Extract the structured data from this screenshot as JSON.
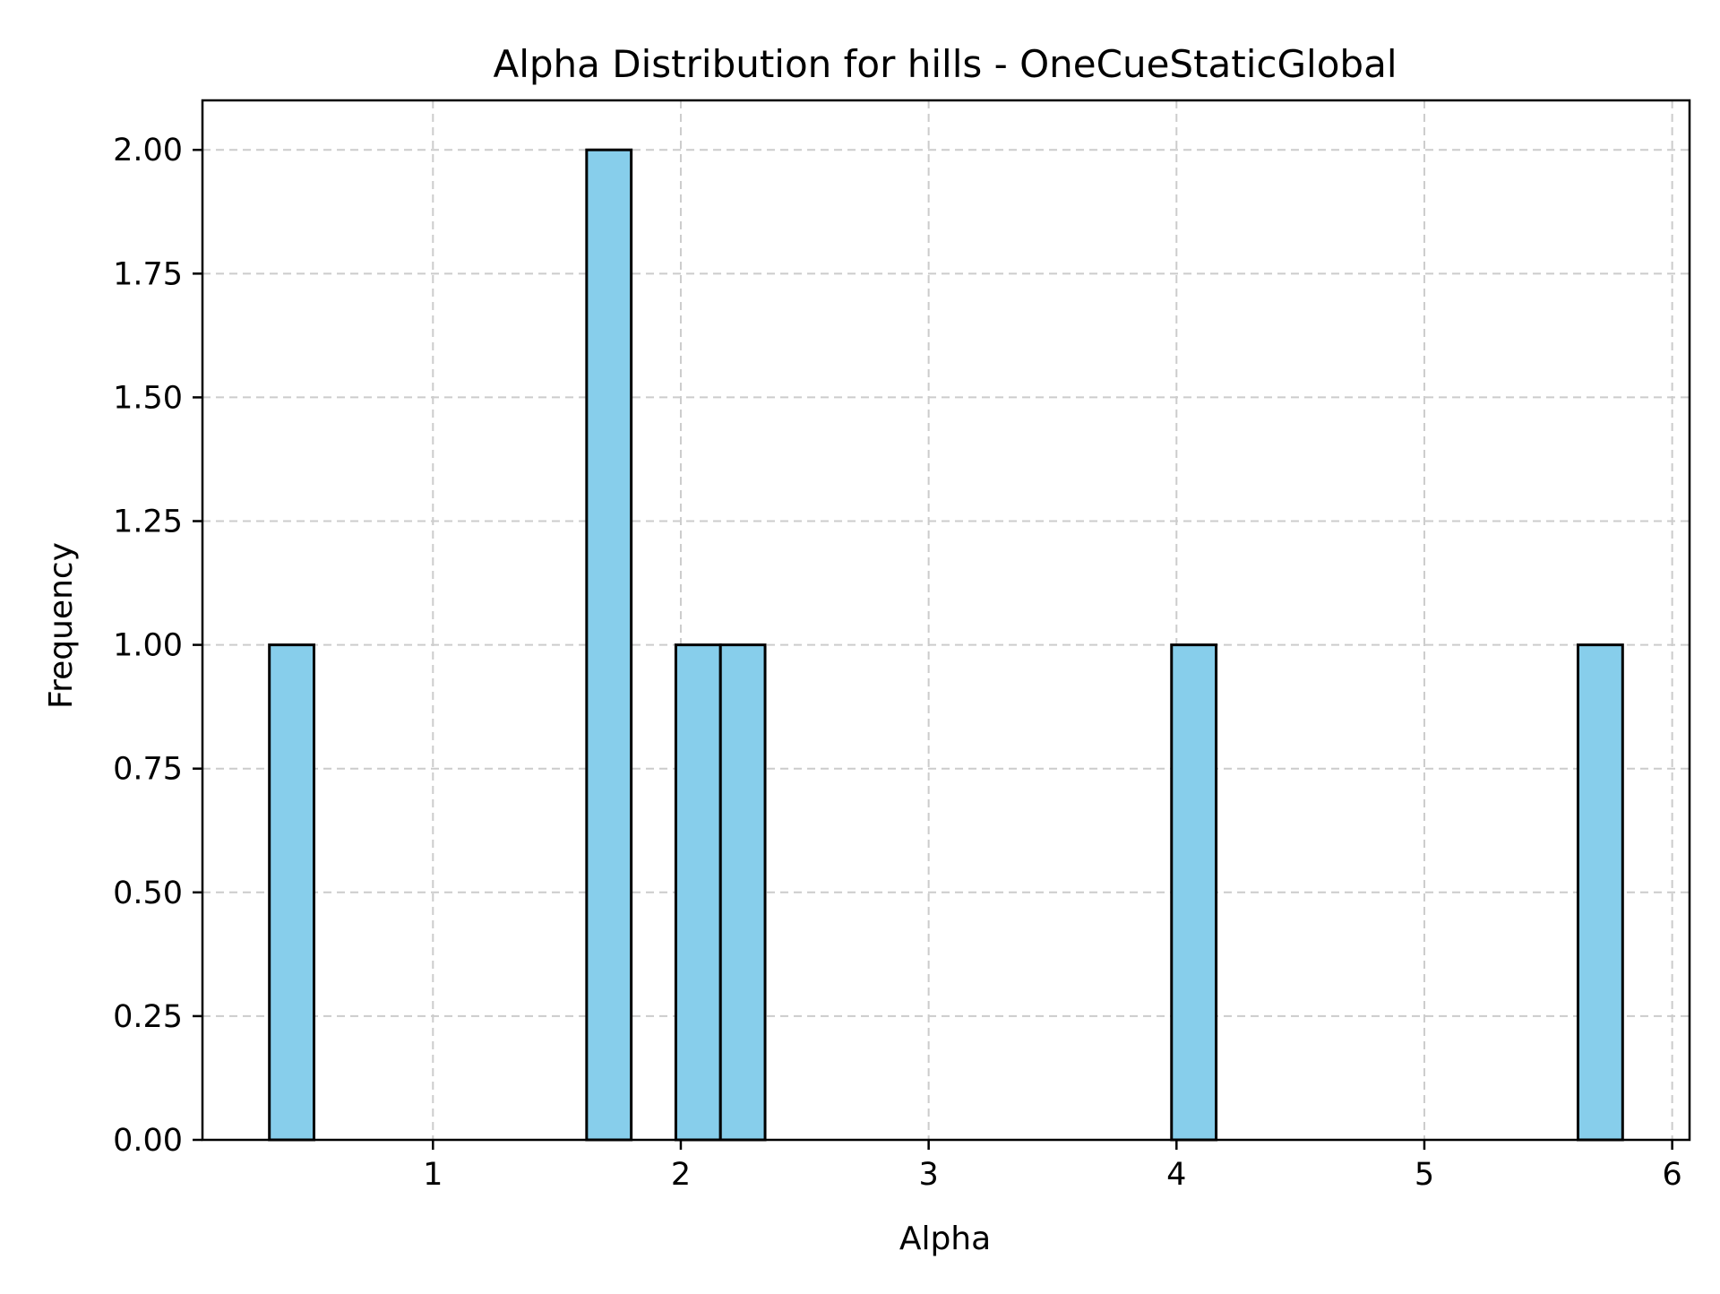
{
  "chart_data": {
    "type": "bar",
    "subtype": "histogram",
    "title": "Alpha Distribution for hills - OneCueStaticGlobal",
    "xlabel": "Alpha",
    "ylabel": "Frequency",
    "xlim": [
      0.07,
      6.07
    ],
    "ylim": [
      0,
      2.1
    ],
    "xticks": [
      1,
      2,
      3,
      4,
      5,
      6
    ],
    "xtick_labels": [
      "1",
      "2",
      "3",
      "4",
      "5",
      "6"
    ],
    "yticks": [
      0,
      0.25,
      0.5,
      0.75,
      1.0,
      1.25,
      1.5,
      1.75,
      2.0
    ],
    "ytick_labels": [
      "0.00",
      "0.25",
      "0.50",
      "0.75",
      "1.00",
      "1.25",
      "1.50",
      "1.75",
      "2.00"
    ],
    "bins": [
      {
        "x0": 0.34,
        "x1": 0.52,
        "count": 1
      },
      {
        "x0": 1.62,
        "x1": 1.8,
        "count": 2
      },
      {
        "x0": 1.98,
        "x1": 2.16,
        "count": 1
      },
      {
        "x0": 2.16,
        "x1": 2.34,
        "count": 1
      },
      {
        "x0": 3.98,
        "x1": 4.16,
        "count": 1
      },
      {
        "x0": 5.62,
        "x1": 5.8,
        "count": 1
      }
    ],
    "grid": true,
    "colors": {
      "bar_fill": "#87ceeb",
      "bar_edge": "#000000",
      "grid": "#cccccc"
    }
  }
}
